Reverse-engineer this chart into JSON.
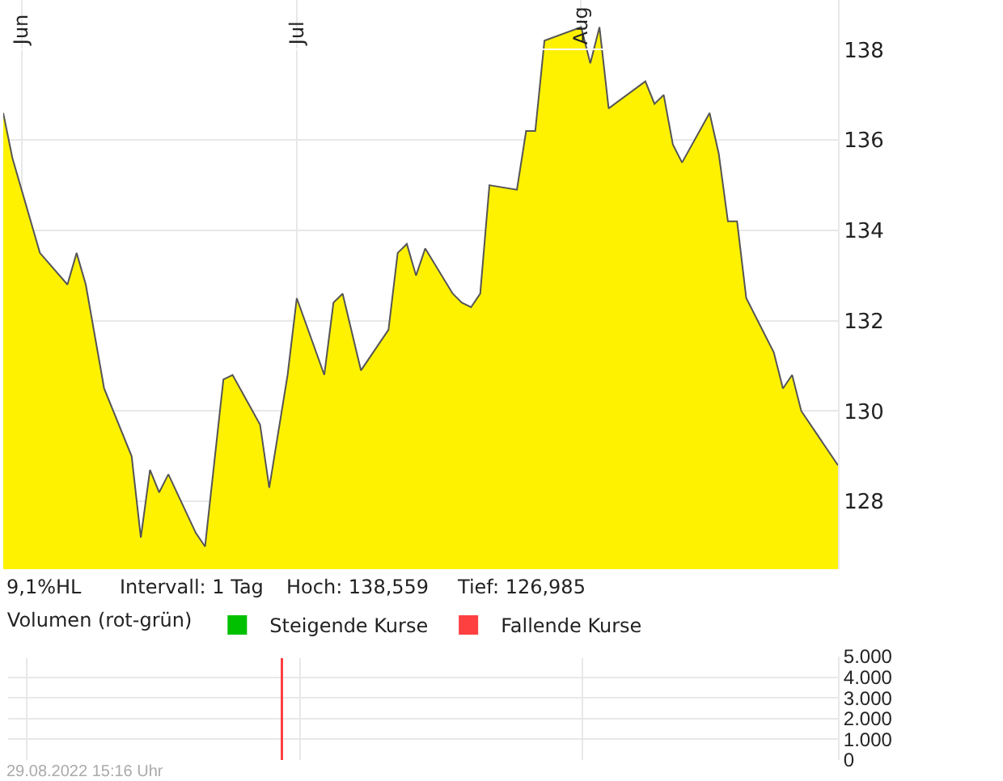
{
  "chart_data": [
    {
      "type": "area",
      "annotations": [
        "9,1%HL",
        "Intervall: 1 Tag",
        "Hoch: 138,559",
        "Tief: 126,985"
      ],
      "x": [
        "2022-05-30",
        "2022-05-31",
        "2022-06-03",
        "2022-06-06",
        "2022-06-07",
        "2022-06-08",
        "2022-06-10",
        "2022-06-13",
        "2022-06-14",
        "2022-06-15",
        "2022-06-16",
        "2022-06-17",
        "2022-06-20",
        "2022-06-21",
        "2022-06-23",
        "2022-06-24",
        "2022-06-27",
        "2022-06-28",
        "2022-06-30",
        "2022-07-01",
        "2022-07-04",
        "2022-07-05",
        "2022-07-06",
        "2022-07-08",
        "2022-07-11",
        "2022-07-12",
        "2022-07-13",
        "2022-07-14",
        "2022-07-15",
        "2022-07-18",
        "2022-07-19",
        "2022-07-20",
        "2022-07-21",
        "2022-07-22",
        "2022-07-25",
        "2022-07-26",
        "2022-07-27",
        "2022-07-28",
        "2022-08-01",
        "2022-08-02",
        "2022-08-03",
        "2022-08-04",
        "2022-08-08",
        "2022-08-09",
        "2022-08-10",
        "2022-08-11",
        "2022-08-12",
        "2022-08-15",
        "2022-08-16",
        "2022-08-17",
        "2022-08-18",
        "2022-08-19",
        "2022-08-22",
        "2022-08-23",
        "2022-08-24",
        "2022-08-25",
        "2022-08-29"
      ],
      "series": [
        {
          "color": "#fff200",
          "values": [
            136.6,
            135.6,
            133.5,
            132.8,
            133.5,
            132.8,
            130.5,
            129.0,
            127.2,
            128.7,
            128.2,
            128.6,
            127.3,
            127.0,
            130.7,
            130.8,
            129.7,
            128.3,
            130.8,
            132.5,
            130.8,
            132.4,
            132.6,
            130.9,
            131.8,
            133.5,
            133.7,
            133.0,
            133.6,
            132.6,
            132.4,
            132.3,
            132.6,
            135.0,
            134.9,
            136.2,
            136.2,
            138.2,
            138.5,
            137.7,
            138.5,
            136.7,
            137.3,
            136.8,
            137.0,
            135.9,
            135.5,
            136.6,
            135.7,
            134.2,
            134.2,
            132.5,
            131.3,
            130.5,
            130.8,
            130.0,
            128.8
          ]
        }
      ],
      "xlim": [
        "2022-05-30",
        "2022-08-29"
      ],
      "xticks": [
        {
          "value": "2022-06-01",
          "label": "Jun"
        },
        {
          "value": "2022-07-01",
          "label": "Jul"
        },
        {
          "value": "2022-08-01",
          "label": "Aug"
        }
      ],
      "ylim": [
        126.5,
        139.1
      ],
      "yticks": [
        128,
        130,
        132,
        134,
        136,
        138
      ],
      "grid": true
    },
    {
      "type": "bar",
      "legend_title": "Volumen (rot-grün)",
      "legend": "top left",
      "annotations": [
        "29.08.2022 15:16 Uhr"
      ],
      "series": [
        {
          "name": "Steigende Kurse",
          "color": "#00c000",
          "values": [
            null
          ]
        },
        {
          "name": "Fallende Kurse",
          "color": "#ff4040",
          "x": [
            "2022-06-29"
          ],
          "values": [
            5000
          ]
        }
      ],
      "xlim": [
        "2022-05-30",
        "2022-08-29"
      ],
      "xticks": [
        {
          "value": "2022-06-01",
          "label": null
        },
        {
          "value": "2022-07-01",
          "label": null
        },
        {
          "value": "2022-08-01",
          "label": null
        }
      ],
      "ylim": [
        0,
        5000
      ],
      "yticks": [
        {
          "value": 0,
          "label": "0"
        },
        {
          "value": 1000,
          "label": "1.000"
        },
        {
          "value": 2000,
          "label": "2.000"
        },
        {
          "value": 3000,
          "label": "3.000"
        },
        {
          "value": 4000,
          "label": "4.000"
        },
        {
          "value": 5000,
          "label": "5.000"
        }
      ],
      "grid": true,
      "tick_labels": "y"
    }
  ]
}
